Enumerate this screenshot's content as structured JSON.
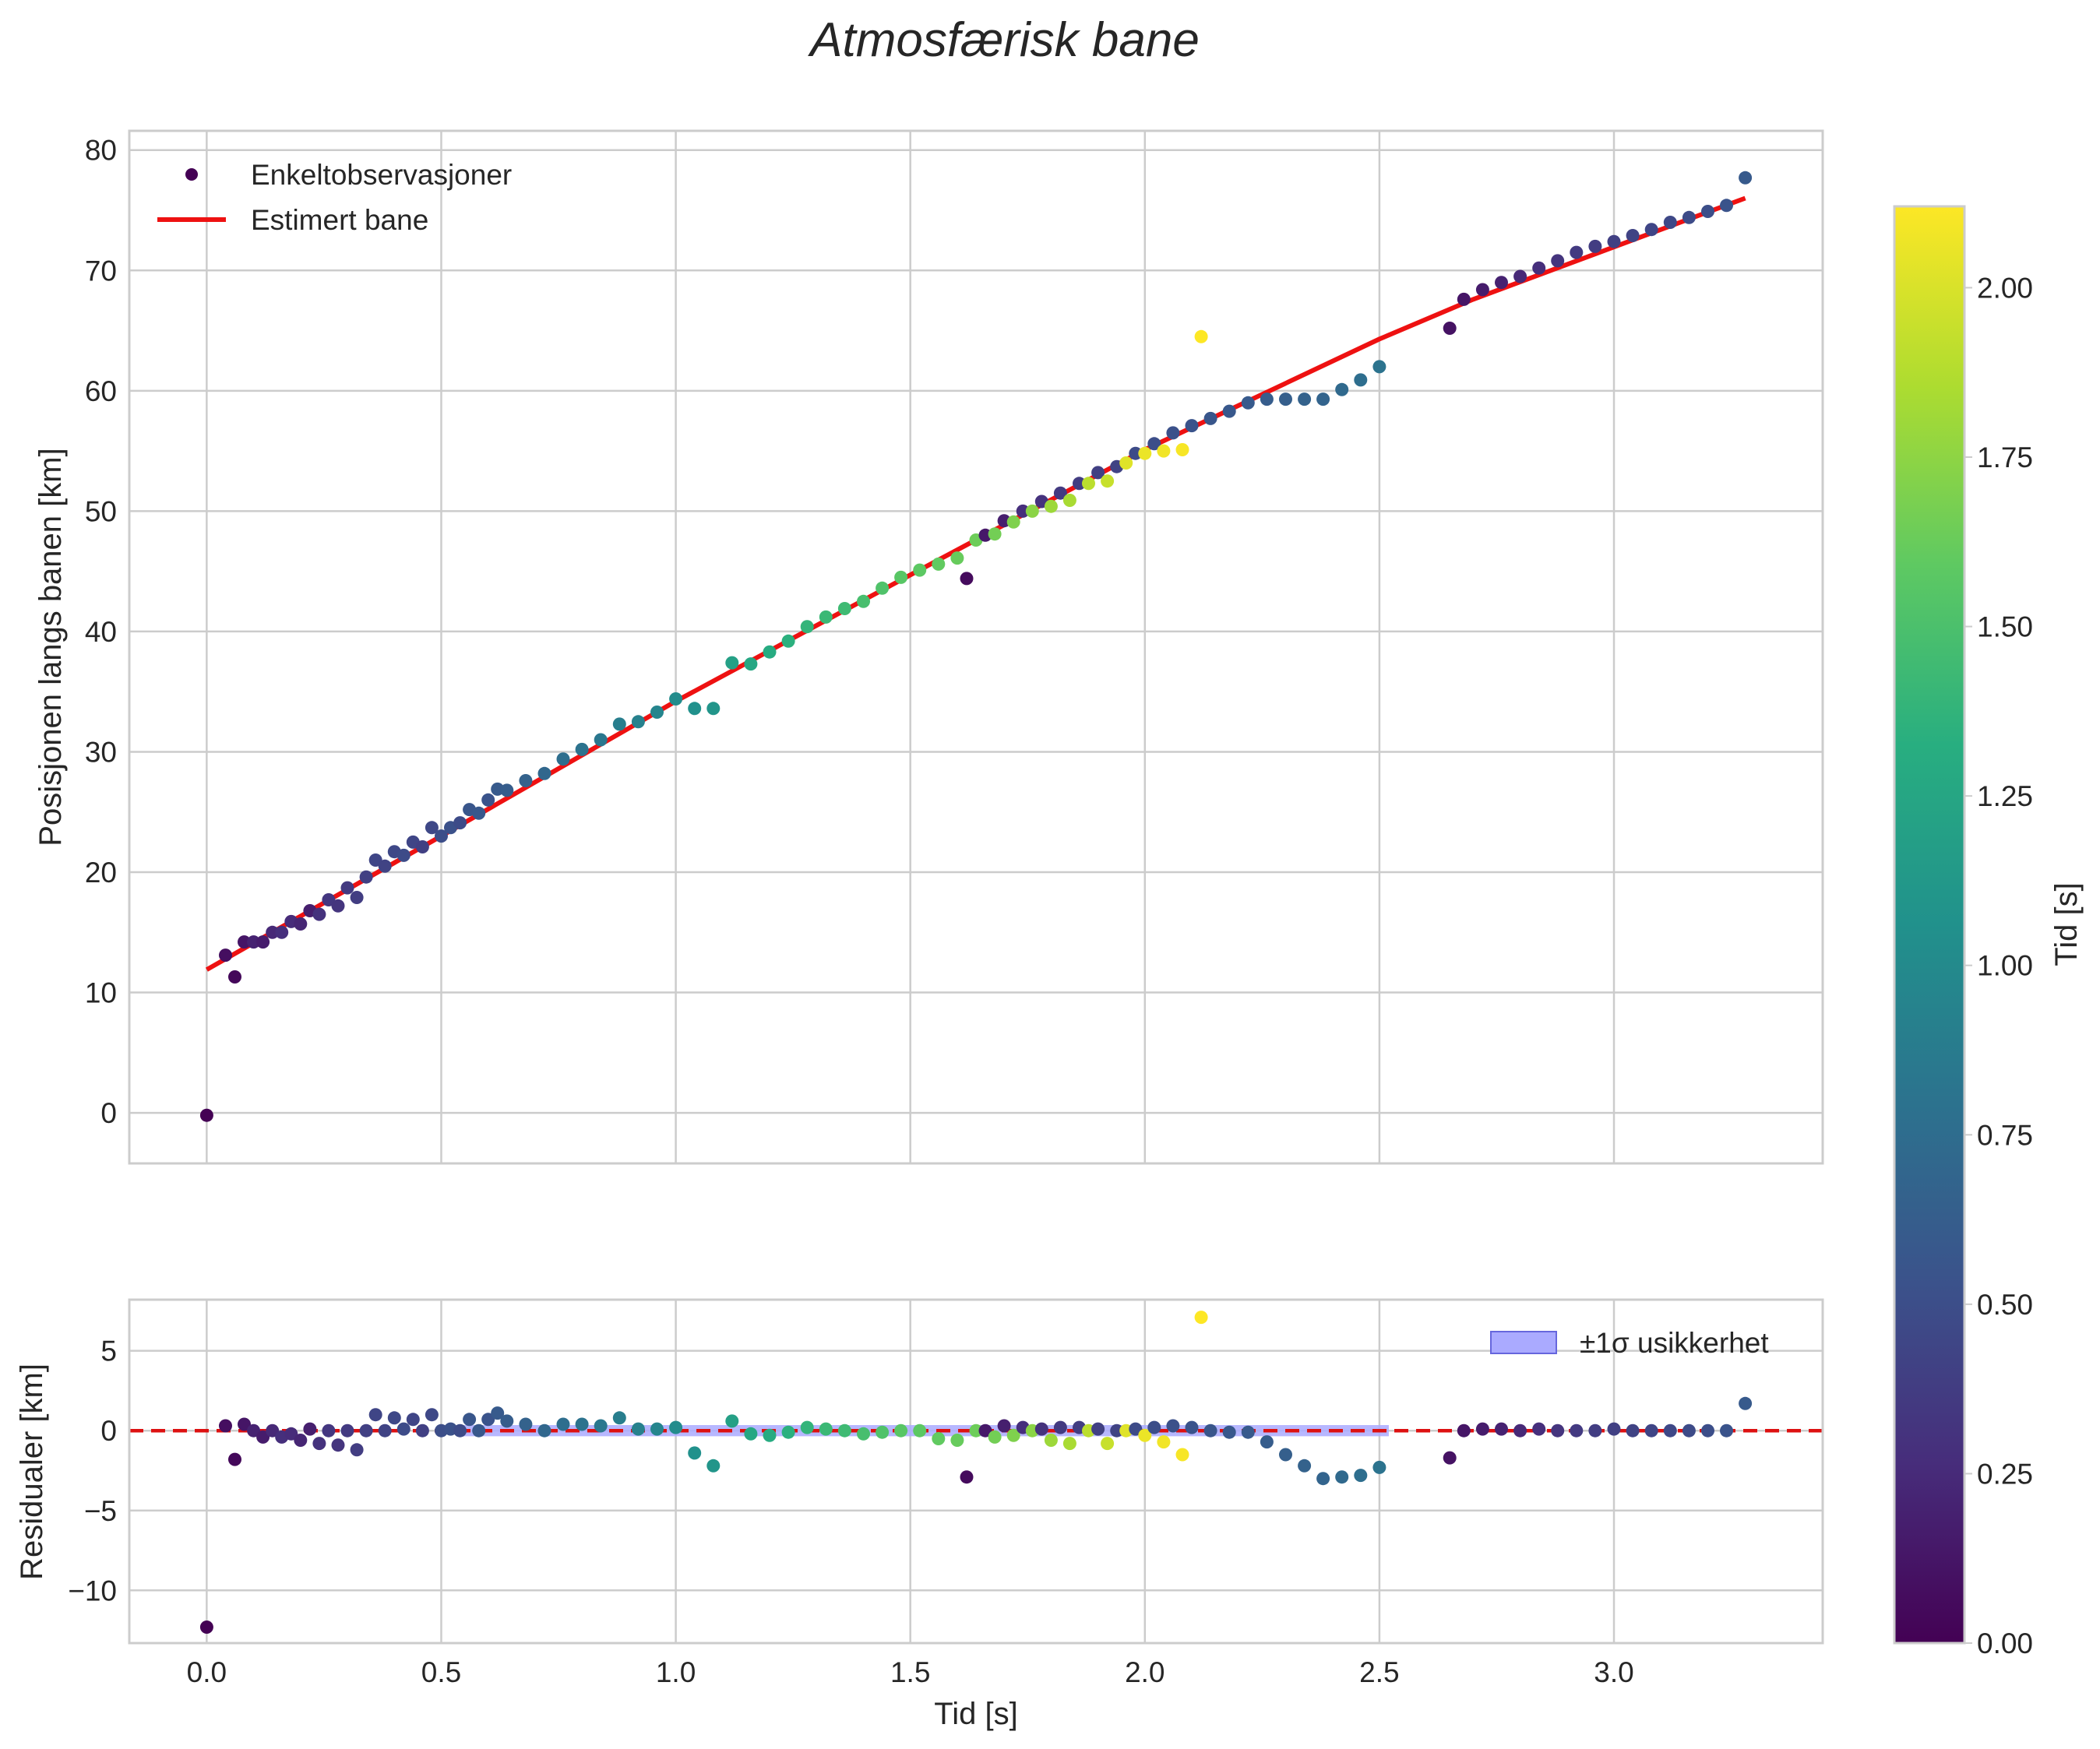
{
  "chart_data": {
    "type": "scatter",
    "title": "Atmosfærisk bane",
    "colormap": "viridis",
    "colors": {
      "fit_line": "#ee1111",
      "zero_line": "#dd1111",
      "band_fill": "#aaaaff",
      "band_edge": "#6666dd",
      "grid": "#cccccc",
      "spine": "#cccccc",
      "text": "#262626"
    },
    "legend_upper": [
      "Enkeltobservasjoner",
      "Estimert bane"
    ],
    "legend_lower": [
      "±1σ usikkerhet"
    ],
    "colorbar": {
      "label": "Tid [s]",
      "range": [
        0,
        2.12
      ],
      "ticks": [
        0,
        0.25,
        0.5,
        0.75,
        1.0,
        1.25,
        1.5,
        1.75,
        2.0
      ],
      "tick_labels": [
        "0.00",
        "0.25",
        "0.50",
        "0.75",
        "1.00",
        "1.25",
        "1.50",
        "1.75",
        "2.00"
      ]
    },
    "xaxis": {
      "label": "Tid [s]",
      "range": [
        -0.165,
        3.445
      ],
      "ticks": [
        0,
        0.5,
        1,
        1.5,
        2,
        2.5,
        3
      ],
      "tick_labels": [
        "0.0",
        "0.5",
        "1.0",
        "1.5",
        "2.0",
        "2.5",
        "3.0"
      ]
    },
    "upper": {
      "ylabel": "Posisjonen langs banen [km]",
      "ylim": [
        -4.2,
        81.6
      ],
      "yticks": [
        0,
        10,
        20,
        30,
        40,
        50,
        60,
        70,
        80
      ],
      "ytick_labels": [
        "0",
        "10",
        "20",
        "30",
        "40",
        "50",
        "60",
        "70",
        "80"
      ],
      "fit": {
        "name": "Estimert bane",
        "x": [
          0.0,
          0.5,
          1.0,
          1.5,
          2.0,
          2.5,
          2.7,
          3.28
        ],
        "y": [
          11.9,
          23.0,
          34.2,
          44.7,
          55.1,
          64.3,
          67.6,
          76.0
        ]
      },
      "points": {
        "name": "Enkeltobservasjoner",
        "t": [
          0.0,
          0.04,
          0.06,
          0.08,
          0.1,
          0.12,
          0.14,
          0.16,
          0.18,
          0.2,
          0.22,
          0.24,
          0.26,
          0.28,
          0.3,
          0.32,
          0.34,
          0.36,
          0.38,
          0.4,
          0.42,
          0.44,
          0.46,
          0.48,
          0.5,
          0.52,
          0.54,
          0.56,
          0.58,
          0.6,
          0.62,
          0.64,
          0.68,
          0.72,
          0.76,
          0.8,
          0.84,
          0.88,
          0.92,
          0.96,
          1.0,
          1.04,
          1.08,
          1.12,
          1.16,
          1.2,
          1.24,
          1.28,
          1.32,
          1.36,
          1.4,
          1.44,
          1.48,
          1.52,
          1.56,
          1.6,
          1.62,
          1.64,
          1.66,
          1.68,
          1.7,
          1.72,
          1.74,
          1.76,
          1.78,
          1.8,
          1.82,
          1.84,
          1.86,
          1.88,
          1.9,
          1.92,
          1.94,
          1.96,
          1.98,
          2.0,
          2.02,
          2.04,
          2.06,
          2.08,
          2.1,
          2.12,
          2.14,
          2.18,
          2.22,
          2.26,
          2.3,
          2.34,
          2.38,
          2.42,
          2.46,
          2.5,
          2.65,
          2.68,
          2.72,
          2.76,
          2.8,
          2.84,
          2.88,
          2.92,
          2.96,
          3.0,
          3.04,
          3.08,
          3.12,
          3.16,
          3.2,
          3.24,
          3.28
        ],
        "y": [
          -0.2,
          13.1,
          11.3,
          14.2,
          14.2,
          14.2,
          15.0,
          15.0,
          15.9,
          15.7,
          16.8,
          16.5,
          17.7,
          17.2,
          18.7,
          17.9,
          19.6,
          21.0,
          20.5,
          21.7,
          21.4,
          22.5,
          22.1,
          23.7,
          23.0,
          23.7,
          24.1,
          25.2,
          24.9,
          26.0,
          26.9,
          26.8,
          27.6,
          28.2,
          29.4,
          30.2,
          31.0,
          32.3,
          32.5,
          33.3,
          34.4,
          33.6,
          33.6,
          37.4,
          37.3,
          38.3,
          39.2,
          40.4,
          41.2,
          41.9,
          42.5,
          43.6,
          44.5,
          45.1,
          45.6,
          46.1,
          44.4,
          47.6,
          48.0,
          48.1,
          49.2,
          49.1,
          50.0,
          50.0,
          50.8,
          50.4,
          51.5,
          50.9,
          52.3,
          52.3,
          53.2,
          52.5,
          53.7,
          54.0,
          54.8,
          54.8,
          55.6,
          55.0,
          56.5,
          55.1,
          57.1,
          64.5,
          57.7,
          58.3,
          59.0,
          59.3,
          59.3,
          59.3,
          59.3,
          60.1,
          60.9,
          62.0,
          65.2,
          67.6,
          68.4,
          69.0,
          69.5,
          70.2,
          70.8,
          71.5,
          72.0,
          72.4,
          72.9,
          73.4,
          74.0,
          74.4,
          74.9,
          75.4,
          77.7
        ],
        "c": [
          0.0,
          0.08,
          0.04,
          0.12,
          0.2,
          0.16,
          0.24,
          0.28,
          0.26,
          0.22,
          0.18,
          0.3,
          0.34,
          0.32,
          0.36,
          0.38,
          0.4,
          0.44,
          0.42,
          0.46,
          0.48,
          0.44,
          0.4,
          0.46,
          0.5,
          0.52,
          0.48,
          0.56,
          0.58,
          0.54,
          0.6,
          0.62,
          0.66,
          0.7,
          0.76,
          0.8,
          0.84,
          0.9,
          0.92,
          0.96,
          1.02,
          1.06,
          1.1,
          1.2,
          1.26,
          1.3,
          1.34,
          1.38,
          1.42,
          1.44,
          1.48,
          1.52,
          1.56,
          1.58,
          1.6,
          1.62,
          0.06,
          1.64,
          0.14,
          1.66,
          0.18,
          1.7,
          0.28,
          1.74,
          0.3,
          1.8,
          0.36,
          1.84,
          0.38,
          1.9,
          0.4,
          1.94,
          0.42,
          2.02,
          0.48,
          2.06,
          0.5,
          2.08,
          0.52,
          2.1,
          0.54,
          2.12,
          0.56,
          0.58,
          0.6,
          0.62,
          0.64,
          0.66,
          0.68,
          0.72,
          0.76,
          0.8,
          0.1,
          0.12,
          0.16,
          0.2,
          0.24,
          0.28,
          0.32,
          0.36,
          0.38,
          0.4,
          0.42,
          0.44,
          0.46,
          0.48,
          0.5,
          0.54,
          0.6
        ]
      }
    },
    "lower": {
      "ylabel": "Residualer [km]",
      "ylim": [
        -13.3,
        8.2
      ],
      "yticks": [
        5,
        0,
        -5,
        -10
      ],
      "ytick_labels": [
        "5",
        "0",
        "−5",
        "−10"
      ],
      "band": {
        "x_start": 0.54,
        "x_end": 2.52,
        "half_width": 0.35
      },
      "points": {
        "t": [
          0.0,
          0.04,
          0.06,
          0.08,
          0.1,
          0.12,
          0.14,
          0.16,
          0.18,
          0.2,
          0.22,
          0.24,
          0.26,
          0.28,
          0.3,
          0.32,
          0.34,
          0.36,
          0.38,
          0.4,
          0.42,
          0.44,
          0.46,
          0.48,
          0.5,
          0.52,
          0.54,
          0.56,
          0.58,
          0.6,
          0.62,
          0.64,
          0.68,
          0.72,
          0.76,
          0.8,
          0.84,
          0.88,
          0.92,
          0.96,
          1.0,
          1.04,
          1.08,
          1.12,
          1.16,
          1.2,
          1.24,
          1.28,
          1.32,
          1.36,
          1.4,
          1.44,
          1.48,
          1.52,
          1.56,
          1.6,
          1.62,
          1.64,
          1.66,
          1.68,
          1.7,
          1.72,
          1.74,
          1.76,
          1.78,
          1.8,
          1.82,
          1.84,
          1.86,
          1.88,
          1.9,
          1.92,
          1.94,
          1.96,
          1.98,
          2.0,
          2.02,
          2.04,
          2.06,
          2.08,
          2.1,
          2.12,
          2.14,
          2.18,
          2.22,
          2.26,
          2.3,
          2.34,
          2.38,
          2.42,
          2.46,
          2.5,
          2.65,
          2.68,
          2.72,
          2.76,
          2.8,
          2.84,
          2.88,
          2.92,
          2.96,
          3.0,
          3.04,
          3.08,
          3.12,
          3.16,
          3.2,
          3.24,
          3.28
        ],
        "y": [
          -12.3,
          0.3,
          -1.8,
          0.4,
          0.0,
          -0.4,
          0.0,
          -0.4,
          -0.2,
          -0.6,
          0.1,
          -0.8,
          0.0,
          -0.9,
          0.0,
          -1.2,
          0.0,
          1.0,
          0.0,
          0.8,
          0.1,
          0.7,
          0.0,
          1.0,
          0.0,
          0.1,
          0.0,
          0.7,
          0.0,
          0.7,
          1.1,
          0.6,
          0.4,
          0.0,
          0.4,
          0.4,
          0.3,
          0.8,
          0.1,
          0.1,
          0.2,
          -1.4,
          -2.2,
          0.6,
          -0.2,
          -0.3,
          -0.1,
          0.2,
          0.1,
          0.0,
          -0.2,
          -0.1,
          0.0,
          0.0,
          -0.5,
          -0.6,
          -2.9,
          0.0,
          0.0,
          -0.4,
          0.3,
          -0.3,
          0.2,
          0.0,
          0.1,
          -0.6,
          0.2,
          -0.8,
          0.2,
          0.0,
          0.1,
          -0.8,
          0.0,
          0.0,
          0.1,
          -0.3,
          0.2,
          -0.7,
          0.3,
          -1.5,
          0.2,
          7.1,
          0.0,
          -0.1,
          -0.1,
          -0.7,
          -1.5,
          -2.2,
          -3.0,
          -2.9,
          -2.8,
          -2.3,
          -1.7,
          0.0,
          0.1,
          0.1,
          0.0,
          0.1,
          0.0,
          0.0,
          0.0,
          0.1,
          0.0,
          0.0,
          0.0,
          0.0,
          0.0,
          0.0,
          1.7
        ],
        "c": [
          0.0,
          0.08,
          0.04,
          0.12,
          0.2,
          0.16,
          0.24,
          0.28,
          0.26,
          0.22,
          0.18,
          0.3,
          0.34,
          0.32,
          0.36,
          0.38,
          0.4,
          0.44,
          0.42,
          0.46,
          0.48,
          0.44,
          0.4,
          0.46,
          0.5,
          0.52,
          0.48,
          0.56,
          0.58,
          0.54,
          0.6,
          0.62,
          0.66,
          0.7,
          0.76,
          0.8,
          0.84,
          0.9,
          0.92,
          0.96,
          1.02,
          1.06,
          1.1,
          1.2,
          1.26,
          1.3,
          1.34,
          1.38,
          1.42,
          1.44,
          1.48,
          1.52,
          1.56,
          1.58,
          1.6,
          1.62,
          0.06,
          1.64,
          0.14,
          1.66,
          0.18,
          1.7,
          0.28,
          1.74,
          0.3,
          1.8,
          0.36,
          1.84,
          0.38,
          1.9,
          0.4,
          1.94,
          0.42,
          2.02,
          0.48,
          2.06,
          0.5,
          2.08,
          0.52,
          2.1,
          0.54,
          2.12,
          0.56,
          0.58,
          0.6,
          0.62,
          0.64,
          0.66,
          0.68,
          0.72,
          0.76,
          0.8,
          0.1,
          0.12,
          0.16,
          0.2,
          0.24,
          0.28,
          0.32,
          0.36,
          0.38,
          0.4,
          0.42,
          0.44,
          0.46,
          0.48,
          0.5,
          0.54,
          0.6
        ]
      }
    }
  }
}
